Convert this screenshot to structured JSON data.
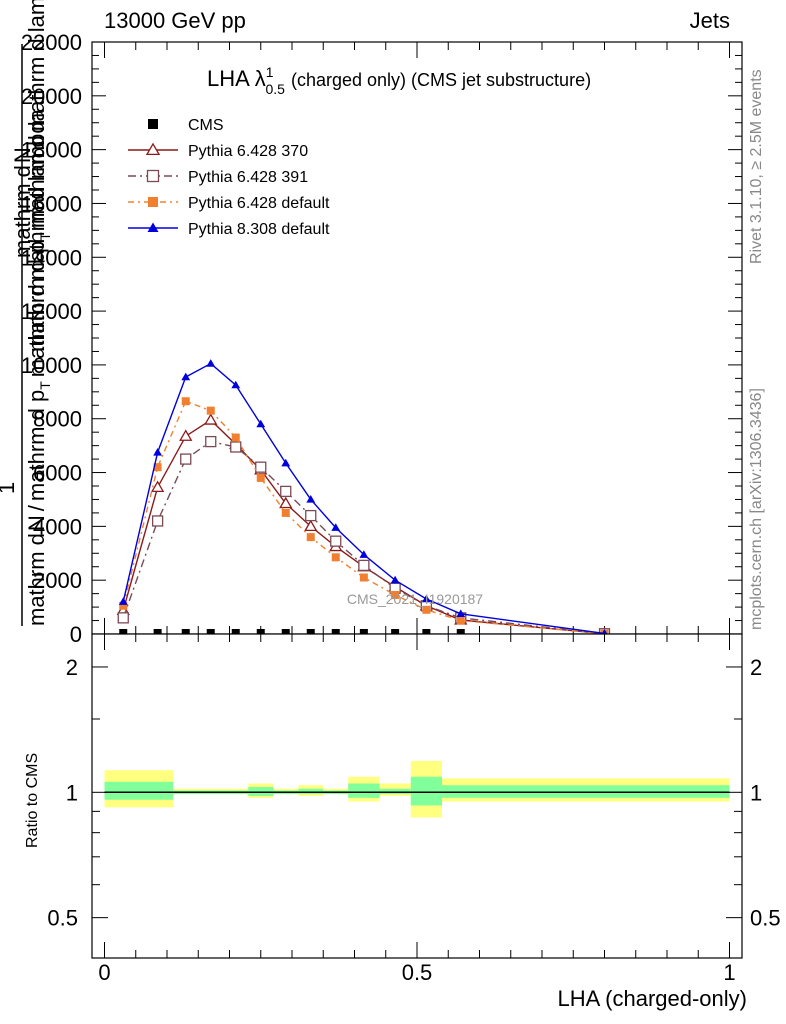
{
  "header": {
    "left": "13000 GeV pp",
    "right": "Jets"
  },
  "side_labels": {
    "rivet": "Rivet 3.1.10, ≥ 2.5M events",
    "mcplots": "mcplots.cern.ch [arXiv:1306.3436]"
  },
  "watermark": "CMS_2021_I1920187",
  "colors": {
    "cms": "#000000",
    "p370": "#8b1a1a",
    "p391": "#7a4a55",
    "p6def": "#f08030",
    "p8def": "#0000dd",
    "band_yellow": "#ffff80",
    "band_green": "#80ff9a"
  },
  "chart_data": [
    {
      "type": "line",
      "title": "LHA λ",
      "title_sup": "1",
      "title_sub": "0.5",
      "title_rest": "(charged only) (CMS jet substructure)",
      "ylabel_segments": [
        "mathrm d",
        "N",
        "mathrm d p",
        "T",
        "mathrm d",
        "mathrm d lambda"
      ],
      "ylabel_lower": [
        "1",
        "mathrm d",
        "N",
        "/",
        "mathrm d p",
        "T",
        "mathrm d",
        "mathrm d lambda"
      ],
      "ylim": [
        0,
        22000
      ],
      "yticks": [
        0,
        2000,
        4000,
        6000,
        8000,
        10000,
        12000,
        14000,
        16000,
        18000,
        20000,
        22000
      ],
      "ytick_labels": [
        "0",
        "2000",
        "4000",
        "6000",
        "8000",
        "10000",
        "12000",
        "14000",
        "16000",
        "18000",
        "20000",
        "22000"
      ],
      "xlim": [
        -0.02,
        1.02
      ],
      "legend_position": "top-left",
      "x": [
        0.03,
        0.085,
        0.13,
        0.17,
        0.21,
        0.25,
        0.29,
        0.33,
        0.37,
        0.415,
        0.465,
        0.515,
        0.57,
        0.8
      ],
      "series": [
        {
          "name": "CMS",
          "marker": "square-filled",
          "x": [
            0.03,
            0.085,
            0.13,
            0.17,
            0.21,
            0.25,
            0.29,
            0.33,
            0.37,
            0.415,
            0.465,
            0.515,
            0.57
          ],
          "values": [
            0,
            0,
            0,
            0,
            0,
            0,
            0,
            0,
            0,
            0,
            0,
            0,
            0
          ]
        },
        {
          "name": "Pythia 6.428 370",
          "marker": "triangle-open",
          "dash": "",
          "values": [
            880,
            5450,
            7350,
            7950,
            7050,
            6100,
            4850,
            4000,
            3250,
            2500,
            1750,
            1050,
            520,
            10
          ]
        },
        {
          "name": "Pythia 6.428 391",
          "marker": "square-open",
          "dash": "8,4,2,4",
          "values": [
            600,
            4200,
            6500,
            7150,
            6950,
            6200,
            5300,
            4400,
            3450,
            2550,
            1700,
            1050,
            600,
            10
          ]
        },
        {
          "name": "Pythia 6.428 default",
          "marker": "square-filled",
          "dash": "6,4,2,4",
          "values": [
            1050,
            6200,
            8650,
            8300,
            7300,
            5800,
            4500,
            3600,
            2850,
            2100,
            1450,
            900,
            500,
            10
          ]
        },
        {
          "name": "Pythia 8.308 default",
          "marker": "triangle-filled",
          "dash": "",
          "values": [
            1200,
            6750,
            9550,
            10050,
            9250,
            7800,
            6350,
            5000,
            3950,
            2950,
            2000,
            1300,
            750,
            20
          ]
        }
      ]
    },
    {
      "type": "area",
      "ylabel": "Ratio to CMS",
      "ylim": [
        0.4,
        2.4
      ],
      "yscale": "log",
      "yticks": [
        0.5,
        1,
        2
      ],
      "ytick_labels": [
        "0.5",
        "1",
        "2"
      ],
      "xlabel": "LHA (charged-only)",
      "xticks": [
        0,
        0.5,
        1
      ],
      "xtick_labels": [
        "0",
        "0.5",
        "1"
      ],
      "bins": [
        {
          "lo": 0.0,
          "hi": 0.11,
          "yellow": [
            0.92,
            1.13
          ],
          "green": [
            0.96,
            1.06
          ]
        },
        {
          "lo": 0.11,
          "hi": 0.23,
          "yellow": [
            0.99,
            1.02
          ],
          "green": [
            0.99,
            1.01
          ]
        },
        {
          "lo": 0.23,
          "hi": 0.27,
          "yellow": [
            0.97,
            1.05
          ],
          "green": [
            0.98,
            1.03
          ]
        },
        {
          "lo": 0.27,
          "hi": 0.31,
          "yellow": [
            0.99,
            1.02
          ],
          "green": [
            0.99,
            1.01
          ]
        },
        {
          "lo": 0.31,
          "hi": 0.35,
          "yellow": [
            0.98,
            1.04
          ],
          "green": [
            0.99,
            1.02
          ]
        },
        {
          "lo": 0.35,
          "hi": 0.39,
          "yellow": [
            0.99,
            1.02
          ],
          "green": [
            0.99,
            1.01
          ]
        },
        {
          "lo": 0.39,
          "hi": 0.44,
          "yellow": [
            0.95,
            1.09
          ],
          "green": [
            0.97,
            1.05
          ]
        },
        {
          "lo": 0.44,
          "hi": 0.49,
          "yellow": [
            0.98,
            1.05
          ],
          "green": [
            0.99,
            1.02
          ]
        },
        {
          "lo": 0.49,
          "hi": 0.54,
          "yellow": [
            0.87,
            1.19
          ],
          "green": [
            0.93,
            1.09
          ]
        },
        {
          "lo": 0.54,
          "hi": 1.0,
          "yellow": [
            0.95,
            1.08
          ],
          "green": [
            0.97,
            1.04
          ]
        }
      ]
    }
  ]
}
